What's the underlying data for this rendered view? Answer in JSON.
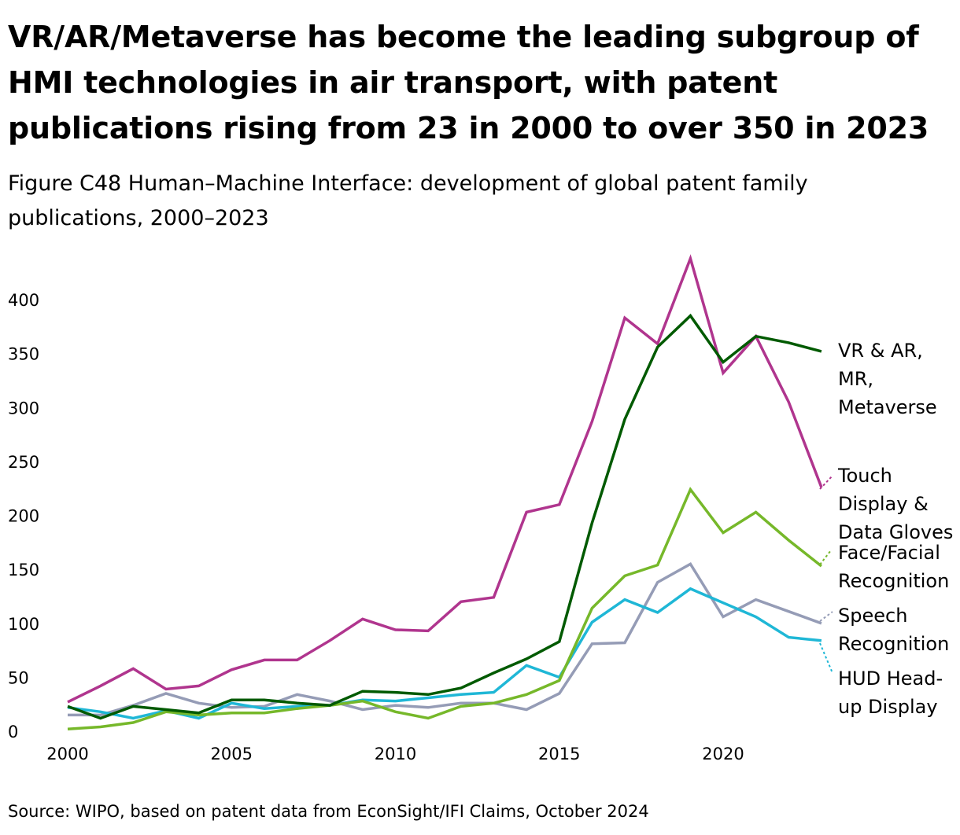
{
  "title": "VR/AR/Metaverse has become the leading subgroup of HMI technologies in air transport, with patent publications rising from 23 in 2000 to over 350 in 2023",
  "subtitle": "Figure C48 Human–Machine Interface: development of global patent family publications, 2000–2023",
  "source": "Source: WIPO, based on patent data from EconSight/IFI Claims, October 2024",
  "chart_data": {
    "type": "line",
    "title": "Figure C48 Human–Machine Interface: development of global patent family publications, 2000–2023",
    "xlabel": "",
    "ylabel": "",
    "x": [
      2000,
      2001,
      2002,
      2003,
      2004,
      2005,
      2006,
      2007,
      2008,
      2009,
      2010,
      2011,
      2012,
      2013,
      2014,
      2015,
      2016,
      2017,
      2018,
      2019,
      2020,
      2021,
      2022,
      2023
    ],
    "xticks": [
      "2000",
      "2005",
      "2010",
      "2015",
      "2020"
    ],
    "yticks": [
      "0",
      "50",
      "100",
      "150",
      "200",
      "250",
      "300",
      "350",
      "400"
    ],
    "ylim": [
      0,
      440
    ],
    "grid": false,
    "legend": "direct labels at right end of lines",
    "series": [
      {
        "name": "VR & AR, MR, Metaverse",
        "lines": [
          "VR & AR,",
          "MR,",
          "Metaverse"
        ],
        "color": "#005a00",
        "values": [
          23,
          12,
          23,
          20,
          17,
          29,
          29,
          26,
          24,
          37,
          36,
          34,
          40,
          54,
          67,
          83,
          193,
          289,
          356,
          385,
          342,
          366,
          360,
          352
        ]
      },
      {
        "name": "Touch Display & Data Gloves",
        "lines": [
          "Touch",
          "Display &",
          "Data Gloves"
        ],
        "color": "#b0358e",
        "values": [
          27,
          42,
          58,
          39,
          42,
          57,
          66,
          66,
          84,
          104,
          94,
          93,
          120,
          124,
          203,
          210,
          287,
          383,
          359,
          438,
          332,
          366,
          305,
          226
        ]
      },
      {
        "name": "Face/Facial Recognition",
        "lines": [
          "Face/Facial",
          "Recognition"
        ],
        "color": "#76b82a",
        "values": [
          2,
          4,
          8,
          18,
          15,
          17,
          17,
          21,
          24,
          28,
          18,
          12,
          23,
          26,
          34,
          47,
          114,
          144,
          154,
          224,
          184,
          203,
          177,
          153
        ]
      },
      {
        "name": "Speech Recognition",
        "lines": [
          "Speech",
          "Recognition"
        ],
        "color": "#959cb6",
        "values": [
          15,
          15,
          24,
          35,
          26,
          22,
          23,
          34,
          28,
          20,
          24,
          22,
          26,
          26,
          20,
          35,
          81,
          82,
          138,
          155,
          106,
          122,
          111,
          100
        ]
      },
      {
        "name": "HUD Head-up Display",
        "lines": [
          "HUD Head-",
          "up Display"
        ],
        "color": "#1fb7d6",
        "values": [
          22,
          18,
          12,
          19,
          12,
          26,
          21,
          23,
          24,
          29,
          28,
          31,
          34,
          36,
          61,
          50,
          101,
          122,
          110,
          132,
          119,
          106,
          87,
          84
        ]
      }
    ]
  }
}
